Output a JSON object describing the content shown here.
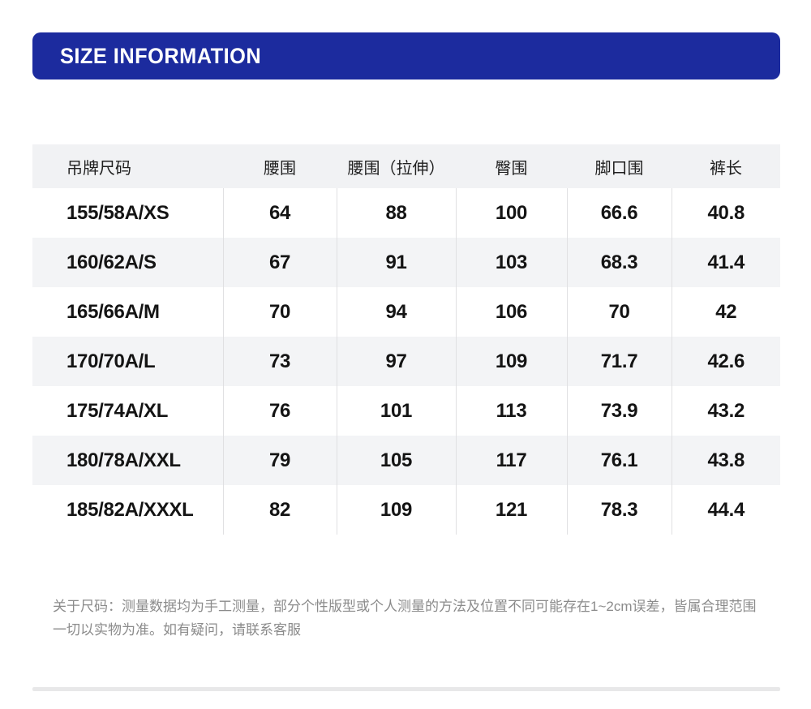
{
  "header": {
    "title": "SIZE INFORMATION"
  },
  "size_table": {
    "columns": [
      "吊牌尺码",
      "腰围",
      "腰围（拉伸）",
      "臀围",
      "脚口围",
      "裤长"
    ],
    "rows": [
      [
        "155/58A/XS",
        "64",
        "88",
        "100",
        "66.6",
        "40.8"
      ],
      [
        "160/62A/S",
        "67",
        "91",
        "103",
        "68.3",
        "41.4"
      ],
      [
        "165/66A/M",
        "70",
        "94",
        "106",
        "70",
        "42"
      ],
      [
        "170/70A/L",
        "73",
        "97",
        "109",
        "71.7",
        "42.6"
      ],
      [
        "175/74A/XL",
        "76",
        "101",
        "113",
        "73.9",
        "43.2"
      ],
      [
        "180/78A/XXL",
        "79",
        "105",
        "117",
        "76.1",
        "43.8"
      ],
      [
        "185/82A/XXXL",
        "82",
        "109",
        "121",
        "78.3",
        "44.4"
      ]
    ]
  },
  "note": {
    "text": "关于尺码：测量数据均为手工测量，部分个性版型或个人测量的方法及位置不同可能存在1~2cm误差，皆属合理范围一切以实物为准。如有疑问，请联系客服"
  },
  "colors": {
    "accent_blue": "#1c2b9e",
    "table_header_bg": "#f1f2f4",
    "row_alt_bg": "#f3f4f6",
    "cell_divider": "#e0e0e2",
    "bottom_bar": "#e8e8e9",
    "note_text": "#8b8b8b"
  }
}
